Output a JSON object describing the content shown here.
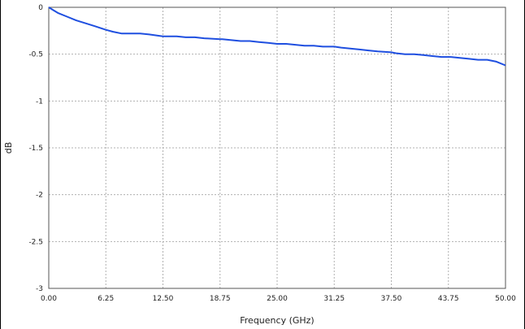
{
  "chart_data": {
    "type": "line",
    "title": "",
    "xlabel": "Frequency (GHz)",
    "ylabel": "dB",
    "xlim": [
      0,
      50
    ],
    "ylim": [
      -3,
      0
    ],
    "x_ticks": [
      "0.00",
      "6.25",
      "12.50",
      "18.75",
      "25.00",
      "31.25",
      "37.50",
      "43.75",
      "50.00"
    ],
    "y_ticks": [
      "0",
      "-0.5",
      "-1",
      "-1.5",
      "-2",
      "-2.5",
      "-3"
    ],
    "grid": true,
    "legend": "none",
    "colors": {
      "series": "#1f4fe0",
      "grid": "#b0b0b0",
      "frame": "#555555"
    },
    "series": [
      {
        "x": [
          0,
          0.5,
          1,
          2,
          3,
          4,
          5,
          6.25,
          7,
          8,
          9,
          10,
          11,
          12.5,
          14,
          15,
          16,
          17,
          18.75,
          19,
          20,
          21,
          22,
          23,
          24,
          25,
          26,
          27,
          28,
          29,
          30,
          31.25,
          32,
          33,
          34,
          35,
          36,
          37.5,
          38,
          39,
          40,
          41,
          42,
          43,
          43.75,
          44,
          45,
          46,
          47,
          48,
          49,
          50
        ],
        "y": [
          0,
          -0.03,
          -0.06,
          -0.1,
          -0.14,
          -0.17,
          -0.2,
          -0.24,
          -0.26,
          -0.28,
          -0.28,
          -0.28,
          -0.29,
          -0.31,
          -0.31,
          -0.32,
          -0.32,
          -0.33,
          -0.34,
          -0.34,
          -0.35,
          -0.36,
          -0.36,
          -0.37,
          -0.38,
          -0.39,
          -0.39,
          -0.4,
          -0.41,
          -0.41,
          -0.42,
          -0.42,
          -0.43,
          -0.44,
          -0.45,
          -0.46,
          -0.47,
          -0.48,
          -0.49,
          -0.5,
          -0.5,
          -0.51,
          -0.52,
          -0.53,
          -0.53,
          -0.53,
          -0.54,
          -0.55,
          -0.56,
          -0.56,
          -0.58,
          -0.62
        ]
      }
    ]
  }
}
